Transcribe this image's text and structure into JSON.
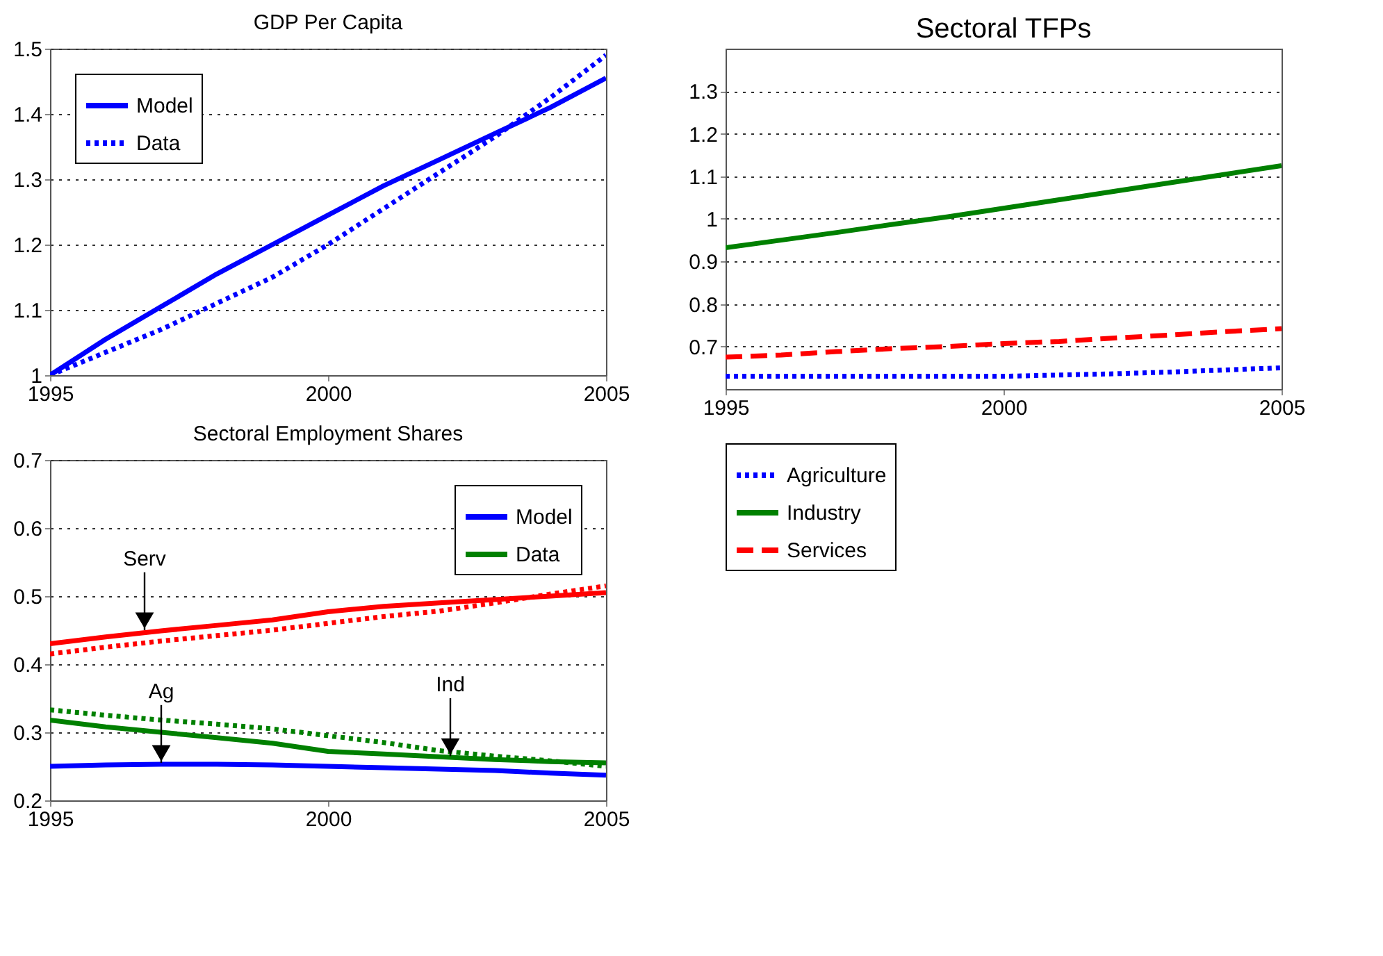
{
  "chart_data": [
    {
      "type": "line",
      "title": "GDP Per Capita",
      "x": [
        1995,
        1996,
        1997,
        1998,
        1999,
        2000,
        2001,
        2002,
        2003,
        2004,
        2005
      ],
      "xlim": [
        1995,
        2005
      ],
      "xticks": [
        1995,
        2000,
        2005
      ],
      "ylim": [
        1,
        1.5
      ],
      "yticks": [
        1,
        1.1,
        1.2,
        1.3,
        1.4,
        1.5
      ],
      "grid": "y",
      "legend": "top left",
      "series": [
        {
          "name": "Model",
          "color": "#0000ff",
          "line_style": "solid",
          "values": [
            1.0,
            1.055,
            1.105,
            1.155,
            1.2,
            1.245,
            1.29,
            1.33,
            1.37,
            1.41,
            1.455
          ]
        },
        {
          "name": "Data",
          "color": "#0000ff",
          "line_style": "dotted",
          "values": [
            1.0,
            1.035,
            1.07,
            1.11,
            1.15,
            1.2,
            1.255,
            1.31,
            1.365,
            1.425,
            1.49
          ]
        }
      ]
    },
    {
      "type": "line",
      "title": "Sectoral TFPs",
      "x": [
        1995,
        1996,
        1997,
        1998,
        1999,
        2000,
        2001,
        2002,
        2003,
        2004,
        2005
      ],
      "xlim": [
        1995,
        2005
      ],
      "xticks": [
        1995,
        2000,
        2005
      ],
      "ylim": [
        0.6,
        1.4
      ],
      "yticks": [
        0.7,
        0.8,
        0.9,
        1,
        1.1,
        1.2,
        1.3
      ],
      "grid": "y",
      "legend": "bottom",
      "series": [
        {
          "name": "Agriculture",
          "color": "#0000ff",
          "line_style": "dotted",
          "values": [
            0.63,
            0.63,
            0.63,
            0.63,
            0.63,
            0.63,
            0.633,
            0.636,
            0.64,
            0.645,
            0.65
          ]
        },
        {
          "name": "Industry",
          "color": "#008000",
          "line_style": "solid",
          "values": [
            0.932,
            0.95,
            0.968,
            0.987,
            1.005,
            1.025,
            1.045,
            1.065,
            1.085,
            1.105,
            1.125
          ]
        },
        {
          "name": "Services",
          "color": "#ff0000",
          "line_style": "dashed",
          "values": [
            0.675,
            0.68,
            0.688,
            0.695,
            0.7,
            0.707,
            0.712,
            0.72,
            0.727,
            0.735,
            0.742
          ]
        }
      ]
    },
    {
      "type": "line",
      "title": "Sectoral Employment Shares",
      "x": [
        1995,
        1996,
        1997,
        1998,
        1999,
        2000,
        2001,
        2002,
        2003,
        2004,
        2005
      ],
      "xlim": [
        1995,
        2005
      ],
      "xticks": [
        1995,
        2000,
        2005
      ],
      "ylim": [
        0.2,
        0.7
      ],
      "yticks": [
        0.2,
        0.3,
        0.4,
        0.5,
        0.6,
        0.7
      ],
      "grid": "y",
      "legend": "top right",
      "series": [
        {
          "name": "Model",
          "color": "#0000ff",
          "line_style": "solid",
          "values": [
            0.25,
            0.252,
            0.253,
            0.253,
            0.252,
            0.25,
            0.248,
            0.246,
            0.244,
            0.24,
            0.237
          ]
        },
        {
          "name": "Data",
          "color": "#008000",
          "line_style": "solid",
          "values": [
            0.318,
            0.308,
            0.3,
            0.292,
            0.284,
            0.272,
            0.268,
            0.264,
            0.26,
            0.257,
            0.255
          ]
        },
        {
          "color": "#008000",
          "line_style": "dotted",
          "values": [
            0.333,
            0.325,
            0.318,
            0.312,
            0.305,
            0.295,
            0.285,
            0.273,
            0.265,
            0.258,
            0.25
          ]
        },
        {
          "color": "#ff0000",
          "line_style": "solid",
          "values": [
            0.43,
            0.44,
            0.449,
            0.457,
            0.465,
            0.477,
            0.485,
            0.49,
            0.495,
            0.5,
            0.505
          ]
        },
        {
          "color": "#ff0000",
          "line_style": "dotted",
          "values": [
            0.415,
            0.425,
            0.434,
            0.442,
            0.45,
            0.46,
            0.47,
            0.478,
            0.49,
            0.503,
            0.515
          ]
        }
      ],
      "annotations": [
        {
          "text": "Serv",
          "x": 1996.7,
          "y": 0.45
        },
        {
          "text": "Ag",
          "x": 1997,
          "y": 0.255
        },
        {
          "text": "Ind",
          "x": 2002.2,
          "y": 0.265
        }
      ]
    }
  ]
}
